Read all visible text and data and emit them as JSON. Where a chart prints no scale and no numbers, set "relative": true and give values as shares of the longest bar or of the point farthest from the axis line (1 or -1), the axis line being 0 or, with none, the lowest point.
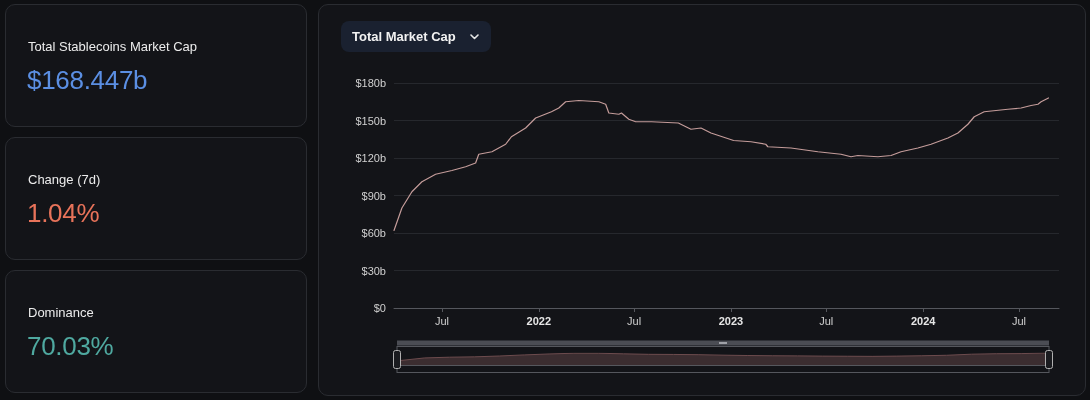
{
  "chart_data": [
    {
      "type": "other",
      "annotations": [
        "Total Stablecoins Market Cap",
        "$168.447b",
        "Change (7d)",
        "1.04%",
        "Dominance",
        "70.03%"
      ]
    },
    {
      "type": "line",
      "title": "Total Market Cap",
      "x": [
        "2021-04-01",
        "2021-04-16",
        "2021-05-05",
        "2021-05-24",
        "2021-06-19",
        "2021-07-20",
        "2021-08-15",
        "2021-09-03",
        "2021-09-09",
        "2021-10-04",
        "2021-10-30",
        "2021-11-10",
        "2021-12-07",
        "2021-12-26",
        "2022-01-25",
        "2022-02-08",
        "2022-02-21",
        "2022-03-18",
        "2022-04-25",
        "2022-05-08",
        "2022-05-14",
        "2022-06-02",
        "2022-06-07",
        "2022-06-21",
        "2022-07-04",
        "2022-08-03",
        "2022-09-23",
        "2022-10-17",
        "2022-11-05",
        "2022-11-24",
        "2023-01-06",
        "2023-02-08",
        "2023-03-08",
        "2023-03-12",
        "2023-04-25",
        "2023-06-15",
        "2023-07-29",
        "2023-08-17",
        "2023-08-30",
        "2023-10-07",
        "2023-11-01",
        "2023-11-20",
        "2023-12-22",
        "2024-01-16",
        "2024-02-17",
        "2024-03-07",
        "2024-03-26",
        "2024-04-07",
        "2024-04-26",
        "2024-06-10",
        "2024-07-05",
        "2024-07-24",
        "2024-08-06",
        "2024-08-12",
        "2024-08-26"
      ],
      "series": [
        {
          "color": "#c49c9a",
          "values": [
            62,
            80,
            93,
            101,
            107,
            110,
            113,
            116,
            123,
            125,
            131,
            137,
            144,
            152,
            157,
            160,
            165,
            166,
            165,
            163,
            156,
            155,
            156,
            151,
            149,
            149,
            148,
            143,
            144,
            140,
            134,
            133,
            131,
            129,
            128,
            125,
            123,
            121,
            122,
            121,
            122,
            125,
            128,
            131,
            136,
            140,
            147,
            153,
            157,
            159,
            160,
            162,
            163,
            165,
            168
          ]
        }
      ],
      "xlim": [
        "2021-04-01",
        "2024-09-15"
      ],
      "xticks": [
        {
          "value": "2021-07-01",
          "label": "Jul"
        },
        {
          "value": "2022-01-01",
          "label": "2022"
        },
        {
          "value": "2022-07-01",
          "label": "Jul"
        },
        {
          "value": "2023-01-01",
          "label": "2023"
        },
        {
          "value": "2023-07-01",
          "label": "Jul"
        },
        {
          "value": "2024-01-01",
          "label": "2024"
        },
        {
          "value": "2024-07-01",
          "label": "Jul"
        }
      ],
      "ylim": [
        0,
        180
      ],
      "yticks": [
        {
          "value": 0,
          "label": "$0"
        },
        {
          "value": 30,
          "label": "$30b"
        },
        {
          "value": 60,
          "label": "$60b"
        },
        {
          "value": 90,
          "label": "$90b"
        },
        {
          "value": 120,
          "label": "$120b"
        },
        {
          "value": 150,
          "label": "$150b"
        },
        {
          "value": 180,
          "label": "$180b"
        }
      ],
      "grid": "y"
    },
    {
      "type": "area",
      "relative": true,
      "color": "#6d4c4e",
      "categories": [
        null,
        null,
        null,
        null,
        null,
        null,
        null,
        null,
        null,
        null,
        null,
        null,
        null,
        null,
        null,
        null,
        null,
        null,
        null,
        null,
        null,
        null,
        null,
        null,
        null,
        null,
        null
      ],
      "values": [
        0.37,
        0.59,
        0.65,
        0.68,
        0.75,
        0.84,
        0.92,
        0.98,
        0.98,
        0.93,
        0.89,
        0.88,
        0.86,
        0.82,
        0.79,
        0.77,
        0.76,
        0.74,
        0.73,
        0.72,
        0.74,
        0.77,
        0.81,
        0.9,
        0.94,
        0.95,
        1
      ]
    }
  ]
}
